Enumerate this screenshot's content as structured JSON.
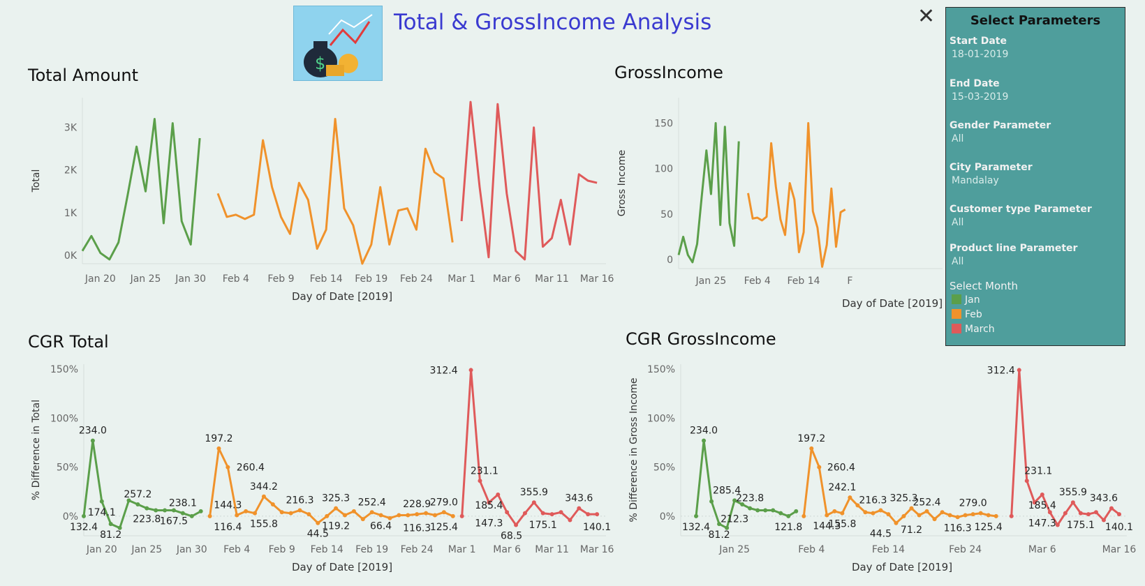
{
  "header": {
    "title": "Total & GrossIncome Analysis",
    "logo_icon": "money-bag-growth-icon"
  },
  "colors": {
    "jan": "#5b9f4a",
    "feb": "#f0922b",
    "mar": "#df5a5a"
  },
  "filters": {
    "title": "Select Parameters",
    "params": [
      {
        "label": "Start Date",
        "value": "18-01-2019"
      },
      {
        "label": "End Date",
        "value": "15-03-2019"
      },
      {
        "label": "Gender Parameter",
        "value": "All"
      },
      {
        "label": "City Parameter",
        "value": "Mandalay"
      },
      {
        "label": "Customer type Parameter",
        "value": "All"
      },
      {
        "label": "Product line Parameter",
        "value": "All"
      }
    ],
    "legend_title": "Select Month",
    "legend": [
      "Jan",
      "Feb",
      "March"
    ]
  },
  "chart_data": [
    {
      "id": "total",
      "type": "line",
      "title": "Total Amount",
      "xlabel": "Day of Date [2019]",
      "ylabel": "Total",
      "ylim": [
        -200,
        3700
      ],
      "yticks": [
        {
          "v": 0,
          "t": "0K"
        },
        {
          "v": 1000,
          "t": "1K"
        },
        {
          "v": 2000,
          "t": "2K"
        },
        {
          "v": 3000,
          "t": "3K"
        }
      ],
      "xlim": [
        18,
        76
      ],
      "xticks": [
        {
          "v": 20,
          "t": "Jan 20"
        },
        {
          "v": 25,
          "t": "Jan 25"
        },
        {
          "v": 30,
          "t": "Jan 30"
        },
        {
          "v": 35,
          "t": "Feb 4"
        },
        {
          "v": 40,
          "t": "Feb 9"
        },
        {
          "v": 45,
          "t": "Feb 14"
        },
        {
          "v": 50,
          "t": "Feb 19"
        },
        {
          "v": 55,
          "t": "Feb 24"
        },
        {
          "v": 60,
          "t": "Mar 1"
        },
        {
          "v": 65,
          "t": "Mar 6"
        },
        {
          "v": 70,
          "t": "Mar 11"
        },
        {
          "v": 75,
          "t": "Mar 16"
        }
      ],
      "series": [
        {
          "name": "Jan",
          "x": [
            18,
            19,
            20,
            21,
            22,
            23,
            24,
            25,
            26,
            27,
            28,
            29,
            30,
            31
          ],
          "values": [
            100,
            450,
            50,
            -100,
            300,
            1400,
            2550,
            1500,
            3200,
            750,
            3100,
            800,
            250,
            2750
          ]
        },
        {
          "name": "Feb",
          "x": [
            33,
            34,
            35,
            36,
            37,
            38,
            39,
            40,
            41,
            42,
            43,
            44,
            45,
            46,
            47,
            48,
            49,
            50,
            51,
            52,
            53,
            54,
            55,
            56,
            57,
            58,
            59
          ],
          "values": [
            1450,
            900,
            950,
            850,
            950,
            2700,
            1600,
            900,
            500,
            1700,
            1300,
            150,
            600,
            3200,
            1100,
            700,
            -200,
            250,
            1600,
            250,
            1050,
            1100,
            600,
            2500,
            1950,
            1800,
            300
          ]
        },
        {
          "name": "March",
          "x": [
            60,
            61,
            62,
            63,
            64,
            65,
            66,
            67,
            68,
            69,
            70,
            71,
            72,
            73,
            74,
            75
          ],
          "values": [
            800,
            3600,
            1600,
            -50,
            3550,
            1450,
            100,
            -100,
            3000,
            200,
            400,
            1300,
            250,
            1900,
            1750,
            1700
          ]
        }
      ]
    },
    {
      "id": "gross",
      "type": "line",
      "title": "GrossIncome",
      "xlabel": "Day of Date [2019]",
      "ylabel": "Gross Income",
      "ylim": [
        -10,
        178
      ],
      "yticks": [
        {
          "v": 0,
          "t": "0"
        },
        {
          "v": 50,
          "t": "50"
        },
        {
          "v": 100,
          "t": "100"
        },
        {
          "v": 150,
          "t": "150"
        }
      ],
      "xlim": [
        18,
        75
      ],
      "xticks": [
        {
          "v": 25,
          "t": "Jan 25"
        },
        {
          "v": 35,
          "t": "Feb 4"
        },
        {
          "v": 45,
          "t": "Feb 14"
        },
        {
          "v": 55,
          "t": "F"
        }
      ],
      "series": [
        {
          "name": "Jan",
          "x": [
            18,
            19,
            20,
            21,
            22,
            23,
            24,
            25,
            26,
            27,
            28,
            29,
            30,
            31
          ],
          "values": [
            5,
            25,
            5,
            -3,
            17,
            70,
            120,
            72,
            150,
            38,
            146,
            40,
            15,
            130
          ]
        },
        {
          "name": "Feb",
          "x": [
            33,
            34,
            35,
            36,
            37,
            38,
            39,
            40,
            41,
            42,
            43,
            44,
            45,
            46,
            47,
            48,
            49,
            50,
            51,
            52,
            53,
            54
          ],
          "values": [
            73,
            45,
            46,
            43,
            47,
            128,
            80,
            44,
            27,
            84,
            66,
            8,
            30,
            150,
            53,
            35,
            -8,
            16,
            78,
            14,
            52,
            55
          ]
        }
      ]
    },
    {
      "id": "cgr-total",
      "type": "line",
      "title": "CGR Total",
      "xlabel": "Day of Date [2019]",
      "ylabel": "% Difference in Total",
      "ylim": [
        -20,
        155
      ],
      "yticks": [
        {
          "v": 0,
          "t": "0%"
        },
        {
          "v": 50,
          "t": "50%"
        },
        {
          "v": 100,
          "t": "100%"
        },
        {
          "v": 150,
          "t": "150%"
        }
      ],
      "xlim": [
        18,
        76
      ],
      "xticks": [
        {
          "v": 20,
          "t": "Jan 20"
        },
        {
          "v": 25,
          "t": "Jan 25"
        },
        {
          "v": 30,
          "t": "Jan 30"
        },
        {
          "v": 35,
          "t": "Feb 4"
        },
        {
          "v": 40,
          "t": "Feb 9"
        },
        {
          "v": 45,
          "t": "Feb 14"
        },
        {
          "v": 50,
          "t": "Feb 19"
        },
        {
          "v": 55,
          "t": "Feb 24"
        },
        {
          "v": 60,
          "t": "Mar 1"
        },
        {
          "v": 65,
          "t": "Mar 6"
        },
        {
          "v": 70,
          "t": "Mar 11"
        },
        {
          "v": 75,
          "t": "Mar 16"
        }
      ],
      "series": [
        {
          "name": "Jan",
          "x": [
            18,
            19,
            20,
            21,
            22,
            23,
            24,
            25,
            26,
            27,
            28,
            29,
            30,
            31
          ],
          "values": [
            0,
            77,
            15,
            -8,
            -12,
            16,
            12,
            8,
            6,
            6,
            6,
            3,
            0,
            5
          ]
        },
        {
          "name": "Feb",
          "x": [
            32,
            33,
            34,
            35,
            36,
            37,
            38,
            39,
            40,
            41,
            42,
            43,
            44,
            45,
            46,
            47,
            48,
            49,
            50,
            51,
            52,
            53,
            54,
            55,
            56,
            57,
            58,
            59
          ],
          "values": [
            0,
            69,
            50,
            1,
            5,
            3,
            20,
            12,
            4,
            3,
            6,
            2,
            -7,
            0,
            8,
            1,
            5,
            -3,
            4,
            1,
            -2,
            1,
            1,
            2,
            3,
            1,
            4,
            0
          ]
        },
        {
          "name": "March",
          "x": [
            60,
            61,
            62,
            63,
            64,
            65,
            66,
            67,
            68,
            69,
            70,
            71,
            72,
            73,
            74,
            75
          ],
          "values": [
            0,
            149,
            36,
            14,
            22,
            4,
            -9,
            3,
            14,
            3,
            2,
            4,
            -4,
            8,
            2,
            2
          ]
        }
      ],
      "labels": [
        {
          "x": 18,
          "y": 0,
          "t": "132.4",
          "pos": "below"
        },
        {
          "x": 19,
          "y": 77,
          "t": "234.0",
          "pos": "above"
        },
        {
          "x": 20,
          "y": 15,
          "t": "174.1",
          "pos": "below"
        },
        {
          "x": 21,
          "y": -8,
          "t": "81.2",
          "pos": "below"
        },
        {
          "x": 24,
          "y": 12,
          "t": "257.2",
          "pos": "above"
        },
        {
          "x": 25,
          "y": 8,
          "t": "223.8",
          "pos": "below"
        },
        {
          "x": 28,
          "y": 6,
          "t": "167.5",
          "pos": "below"
        },
        {
          "x": 29,
          "y": 3,
          "t": "238.1",
          "pos": "above"
        },
        {
          "x": 33,
          "y": 69,
          "t": "197.2",
          "pos": "above"
        },
        {
          "x": 34.5,
          "y": 50,
          "t": "260.4",
          "pos": "right"
        },
        {
          "x": 34,
          "y": 1,
          "t": "144.3",
          "pos": "above"
        },
        {
          "x": 34,
          "y": 0,
          "t": "116.4",
          "pos": "below"
        },
        {
          "x": 38,
          "y": 20,
          "t": "344.2",
          "pos": "above"
        },
        {
          "x": 38,
          "y": 3,
          "t": "155.8",
          "pos": "below"
        },
        {
          "x": 42,
          "y": 6,
          "t": "216.3",
          "pos": "above"
        },
        {
          "x": 44,
          "y": -7,
          "t": "44.5",
          "pos": "below"
        },
        {
          "x": 46,
          "y": 8,
          "t": "325.3",
          "pos": "above"
        },
        {
          "x": 46,
          "y": 1,
          "t": "119.2",
          "pos": "below"
        },
        {
          "x": 50,
          "y": 4,
          "t": "252.4",
          "pos": "above"
        },
        {
          "x": 51,
          "y": 1,
          "t": "66.4",
          "pos": "below"
        },
        {
          "x": 55,
          "y": 2,
          "t": "228.9",
          "pos": "above"
        },
        {
          "x": 55,
          "y": -1,
          "t": "116.3",
          "pos": "below"
        },
        {
          "x": 58,
          "y": 4,
          "t": "279.0",
          "pos": "above"
        },
        {
          "x": 58,
          "y": 0,
          "t": "125.4",
          "pos": "below"
        },
        {
          "x": 60,
          "y": 149,
          "t": "312.4",
          "pos": "left"
        },
        {
          "x": 62.5,
          "y": 36,
          "t": "231.1",
          "pos": "above"
        },
        {
          "x": 63,
          "y": 22,
          "t": "185.4",
          "pos": "below"
        },
        {
          "x": 63,
          "y": 4,
          "t": "147.3",
          "pos": "below"
        },
        {
          "x": 65.5,
          "y": -9,
          "t": "68.5",
          "pos": "below"
        },
        {
          "x": 68,
          "y": 14,
          "t": "355.9",
          "pos": "above"
        },
        {
          "x": 69,
          "y": 2,
          "t": "175.1",
          "pos": "below"
        },
        {
          "x": 73,
          "y": 8,
          "t": "343.6",
          "pos": "above"
        },
        {
          "x": 75,
          "y": 0,
          "t": "140.1",
          "pos": "below"
        }
      ]
    },
    {
      "id": "cgr-gross",
      "type": "line",
      "title": "CGR GrossIncome",
      "xlabel": "Day of Date [2019]",
      "ylabel": "% Difference in Gross Income",
      "ylim": [
        -20,
        155
      ],
      "yticks": [
        {
          "v": 0,
          "t": "0%"
        },
        {
          "v": 50,
          "t": "50%"
        },
        {
          "v": 100,
          "t": "100%"
        },
        {
          "v": 150,
          "t": "150%"
        }
      ],
      "xlim": [
        18,
        76
      ],
      "xticks": [
        {
          "v": 25,
          "t": "Jan 25"
        },
        {
          "v": 35,
          "t": "Feb 4"
        },
        {
          "v": 45,
          "t": "Feb 14"
        },
        {
          "v": 55,
          "t": "Feb 24"
        },
        {
          "v": 65,
          "t": "Mar 6"
        },
        {
          "v": 75,
          "t": "Mar 16"
        }
      ],
      "series": [
        {
          "name": "Jan",
          "x": [
            20,
            21,
            22,
            23,
            24,
            25,
            26,
            27,
            28,
            29,
            30,
            31,
            32,
            33
          ],
          "values": [
            0,
            77,
            15,
            -8,
            -12,
            16,
            12,
            8,
            6,
            6,
            6,
            3,
            0,
            5
          ]
        },
        {
          "name": "Feb",
          "x": [
            34,
            35,
            36,
            37,
            38,
            39,
            40,
            41,
            42,
            43,
            44,
            45,
            46,
            47,
            48,
            49,
            50,
            51,
            52,
            53,
            54,
            55,
            56,
            57,
            58,
            59
          ],
          "values": [
            0,
            69,
            50,
            1,
            5,
            3,
            19,
            11,
            4,
            3,
            6,
            2,
            -7,
            0,
            8,
            1,
            5,
            -3,
            4,
            1,
            -1,
            1,
            2,
            3,
            1,
            0
          ]
        },
        {
          "name": "March",
          "x": [
            61,
            62,
            63,
            64,
            65,
            66,
            67,
            68,
            69,
            70,
            71,
            72,
            73,
            74,
            75
          ],
          "values": [
            0,
            149,
            36,
            14,
            22,
            4,
            -9,
            3,
            14,
            3,
            2,
            4,
            -4,
            8,
            2
          ]
        }
      ],
      "labels": [
        {
          "x": 20,
          "y": 0,
          "t": "132.4",
          "pos": "below"
        },
        {
          "x": 21,
          "y": 77,
          "t": "234.0",
          "pos": "above"
        },
        {
          "x": 23,
          "y": -8,
          "t": "81.2",
          "pos": "below"
        },
        {
          "x": 24,
          "y": 16,
          "t": "285.4",
          "pos": "above"
        },
        {
          "x": 25,
          "y": 8,
          "t": "212.3",
          "pos": "below"
        },
        {
          "x": 27,
          "y": 8,
          "t": "223.8",
          "pos": "above"
        },
        {
          "x": 32,
          "y": 0,
          "t": "121.8",
          "pos": "below"
        },
        {
          "x": 35,
          "y": 69,
          "t": "197.2",
          "pos": "above"
        },
        {
          "x": 36.5,
          "y": 50,
          "t": "260.4",
          "pos": "right"
        },
        {
          "x": 37,
          "y": 1,
          "t": "144.3",
          "pos": "below"
        },
        {
          "x": 39,
          "y": 19,
          "t": "242.1",
          "pos": "above"
        },
        {
          "x": 39,
          "y": 3,
          "t": "155.8",
          "pos": "below"
        },
        {
          "x": 43,
          "y": 6,
          "t": "216.3",
          "pos": "above"
        },
        {
          "x": 44,
          "y": -7,
          "t": "44.5",
          "pos": "below"
        },
        {
          "x": 47,
          "y": 8,
          "t": "325.3",
          "pos": "above"
        },
        {
          "x": 48,
          "y": -3,
          "t": "71.2",
          "pos": "below"
        },
        {
          "x": 50,
          "y": 4,
          "t": "252.4",
          "pos": "above"
        },
        {
          "x": 54,
          "y": -1,
          "t": "116.3",
          "pos": "below"
        },
        {
          "x": 56,
          "y": 3,
          "t": "279.0",
          "pos": "above"
        },
        {
          "x": 58,
          "y": 0,
          "t": "125.4",
          "pos": "below"
        },
        {
          "x": 62,
          "y": 149,
          "t": "312.4",
          "pos": "left"
        },
        {
          "x": 64.5,
          "y": 36,
          "t": "231.1",
          "pos": "above"
        },
        {
          "x": 65,
          "y": 22,
          "t": "185.4",
          "pos": "below"
        },
        {
          "x": 65,
          "y": 4,
          "t": "147.3",
          "pos": "below"
        },
        {
          "x": 69,
          "y": 14,
          "t": "355.9",
          "pos": "above"
        },
        {
          "x": 70,
          "y": 2,
          "t": "175.1",
          "pos": "below"
        },
        {
          "x": 73,
          "y": 8,
          "t": "343.6",
          "pos": "above"
        },
        {
          "x": 75,
          "y": 0,
          "t": "140.1",
          "pos": "below"
        }
      ]
    }
  ]
}
